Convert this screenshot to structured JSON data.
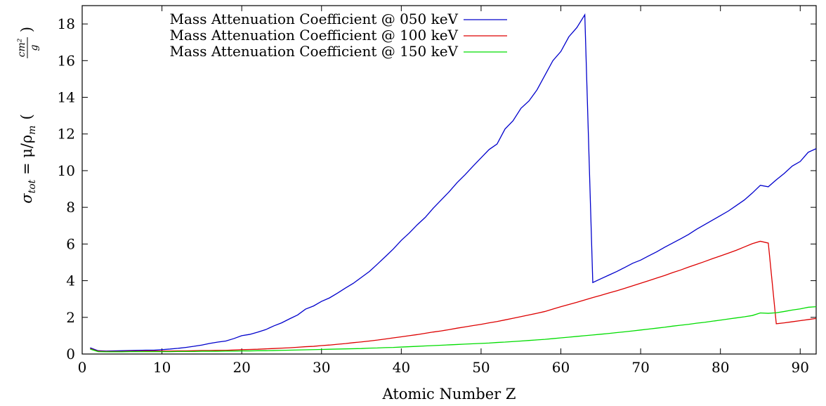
{
  "chart_data": {
    "type": "line",
    "title": "",
    "xlabel": "Atomic Number Z",
    "ylabel": {
      "sigma": "σ",
      "sub": "tot",
      "eq": " = μ/ρ",
      "sub2": "m",
      "unit_num": "cm²",
      "unit_den": "g"
    },
    "xlim": [
      0,
      92
    ],
    "ylim": [
      0,
      19
    ],
    "xticks": [
      0,
      10,
      20,
      30,
      40,
      50,
      60,
      70,
      80,
      90
    ],
    "yticks": [
      0,
      2,
      4,
      6,
      8,
      10,
      12,
      14,
      16,
      18
    ],
    "grid": false,
    "legend_position": "top-left",
    "series": [
      {
        "name": "Mass Attenuation Coefficient @ 050 keV",
        "color": "#0000cc",
        "x": [
          1,
          2,
          3,
          4,
          5,
          6,
          7,
          8,
          9,
          10,
          11,
          12,
          13,
          14,
          15,
          16,
          17,
          18,
          19,
          20,
          21,
          22,
          23,
          24,
          25,
          26,
          27,
          28,
          29,
          30,
          31,
          32,
          33,
          34,
          35,
          36,
          37,
          38,
          39,
          40,
          41,
          42,
          43,
          44,
          45,
          46,
          47,
          48,
          49,
          50,
          51,
          52,
          53,
          54,
          55,
          56,
          57,
          58,
          59,
          60,
          61,
          62,
          63,
          64,
          65,
          66,
          67,
          68,
          69,
          70,
          71,
          72,
          73,
          74,
          75,
          76,
          77,
          78,
          79,
          80,
          81,
          82,
          83,
          84,
          85,
          86,
          87,
          88,
          89,
          90,
          91,
          92
        ],
        "y": [
          0.34,
          0.18,
          0.16,
          0.17,
          0.18,
          0.19,
          0.2,
          0.21,
          0.21,
          0.24,
          0.27,
          0.31,
          0.36,
          0.42,
          0.49,
          0.58,
          0.65,
          0.71,
          0.84,
          1.0,
          1.07,
          1.19,
          1.33,
          1.53,
          1.7,
          1.92,
          2.13,
          2.45,
          2.62,
          2.87,
          3.06,
          3.32,
          3.6,
          3.86,
          4.18,
          4.5,
          4.9,
          5.31,
          5.73,
          6.2,
          6.6,
          7.05,
          7.45,
          7.95,
          8.4,
          8.85,
          9.35,
          9.78,
          10.25,
          10.7,
          11.15,
          11.45,
          12.27,
          12.72,
          13.4,
          13.8,
          14.4,
          15.2,
          16.0,
          16.5,
          17.3,
          17.8,
          18.5,
          3.9,
          4.1,
          4.3,
          4.5,
          4.72,
          4.95,
          5.12,
          5.35,
          5.57,
          5.82,
          6.05,
          6.28,
          6.52,
          6.8,
          7.05,
          7.3,
          7.55,
          7.8,
          8.1,
          8.4,
          8.78,
          9.2,
          9.12,
          9.5,
          9.85,
          10.25,
          10.5,
          11.0,
          11.2
        ]
      },
      {
        "name": "Mass Attenuation Coefficient @ 100 keV",
        "color": "#dd0000",
        "x": [
          1,
          2,
          3,
          4,
          5,
          6,
          7,
          8,
          9,
          10,
          11,
          12,
          13,
          14,
          15,
          16,
          17,
          18,
          19,
          20,
          21,
          22,
          23,
          24,
          25,
          26,
          27,
          28,
          29,
          30,
          31,
          32,
          33,
          34,
          35,
          36,
          37,
          38,
          39,
          40,
          41,
          42,
          43,
          44,
          45,
          46,
          47,
          48,
          49,
          50,
          51,
          52,
          53,
          54,
          55,
          56,
          57,
          58,
          59,
          60,
          61,
          62,
          63,
          64,
          65,
          66,
          67,
          68,
          69,
          70,
          71,
          72,
          73,
          74,
          75,
          76,
          77,
          78,
          79,
          80,
          81,
          82,
          83,
          84,
          85,
          86,
          87,
          88,
          89,
          90,
          91,
          92
        ],
        "y": [
          0.29,
          0.15,
          0.14,
          0.14,
          0.14,
          0.15,
          0.15,
          0.16,
          0.16,
          0.16,
          0.16,
          0.17,
          0.17,
          0.18,
          0.19,
          0.19,
          0.2,
          0.2,
          0.22,
          0.24,
          0.25,
          0.26,
          0.28,
          0.3,
          0.32,
          0.34,
          0.37,
          0.4,
          0.42,
          0.46,
          0.49,
          0.53,
          0.57,
          0.62,
          0.66,
          0.71,
          0.76,
          0.82,
          0.88,
          0.94,
          1.0,
          1.06,
          1.13,
          1.2,
          1.26,
          1.33,
          1.41,
          1.48,
          1.55,
          1.62,
          1.7,
          1.77,
          1.86,
          1.95,
          2.04,
          2.13,
          2.22,
          2.32,
          2.45,
          2.58,
          2.7,
          2.82,
          2.95,
          3.08,
          3.2,
          3.33,
          3.45,
          3.58,
          3.72,
          3.86,
          4.0,
          4.14,
          4.28,
          4.44,
          4.58,
          4.74,
          4.89,
          5.04,
          5.2,
          5.35,
          5.5,
          5.66,
          5.84,
          6.02,
          6.15,
          6.05,
          1.65,
          1.7,
          1.76,
          1.82,
          1.88,
          1.94
        ]
      },
      {
        "name": "Mass Attenuation Coefficient @ 150 keV",
        "color": "#00dd00",
        "x": [
          1,
          2,
          3,
          4,
          5,
          6,
          7,
          8,
          9,
          10,
          11,
          12,
          13,
          14,
          15,
          16,
          17,
          18,
          19,
          20,
          21,
          22,
          23,
          24,
          25,
          26,
          27,
          28,
          29,
          30,
          31,
          32,
          33,
          34,
          35,
          36,
          37,
          38,
          39,
          40,
          41,
          42,
          43,
          44,
          45,
          46,
          47,
          48,
          49,
          50,
          51,
          52,
          53,
          54,
          55,
          56,
          57,
          58,
          59,
          60,
          61,
          62,
          63,
          64,
          65,
          66,
          67,
          68,
          69,
          70,
          71,
          72,
          73,
          74,
          75,
          76,
          77,
          78,
          79,
          80,
          81,
          82,
          83,
          84,
          85,
          86,
          87,
          88,
          89,
          90,
          91,
          92
        ],
        "y": [
          0.27,
          0.13,
          0.12,
          0.12,
          0.12,
          0.13,
          0.13,
          0.13,
          0.13,
          0.13,
          0.13,
          0.14,
          0.14,
          0.14,
          0.15,
          0.15,
          0.15,
          0.16,
          0.16,
          0.17,
          0.17,
          0.18,
          0.18,
          0.19,
          0.2,
          0.21,
          0.22,
          0.23,
          0.24,
          0.25,
          0.26,
          0.27,
          0.28,
          0.29,
          0.3,
          0.32,
          0.33,
          0.35,
          0.36,
          0.38,
          0.4,
          0.42,
          0.44,
          0.46,
          0.48,
          0.5,
          0.52,
          0.54,
          0.56,
          0.58,
          0.6,
          0.63,
          0.65,
          0.68,
          0.71,
          0.74,
          0.77,
          0.8,
          0.84,
          0.88,
          0.92,
          0.96,
          1.0,
          1.04,
          1.08,
          1.12,
          1.17,
          1.21,
          1.26,
          1.31,
          1.36,
          1.41,
          1.46,
          1.52,
          1.57,
          1.62,
          1.68,
          1.73,
          1.79,
          1.85,
          1.91,
          1.97,
          2.03,
          2.1,
          2.24,
          2.22,
          2.25,
          2.32,
          2.4,
          2.46,
          2.55,
          2.58
        ]
      }
    ]
  }
}
